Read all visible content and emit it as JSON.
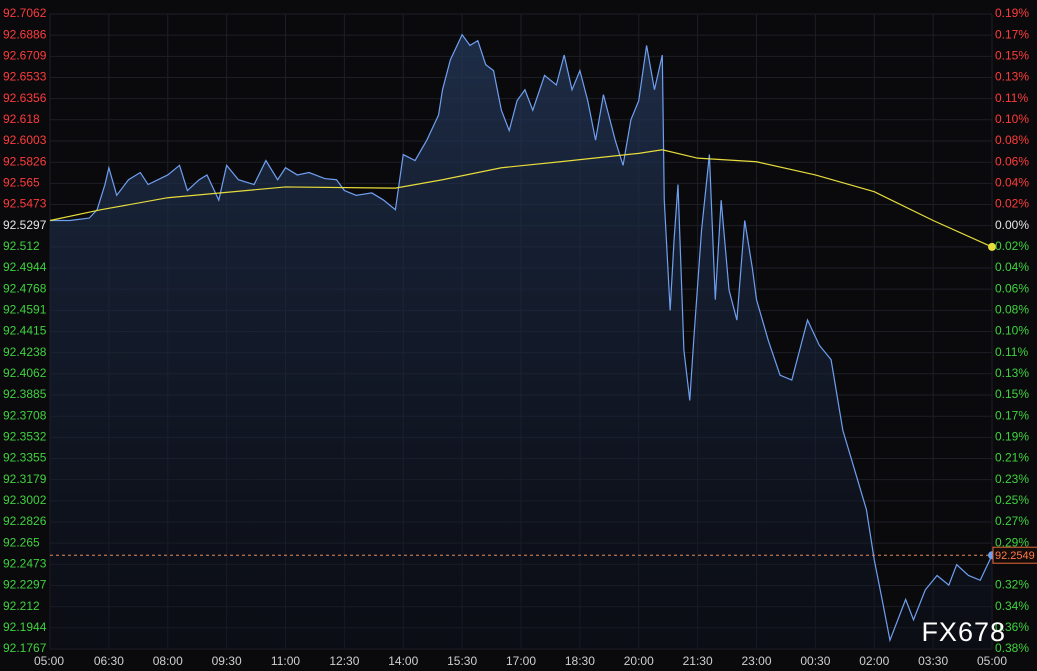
{
  "chart_data": {
    "type": "line",
    "watermark": "FX678",
    "grid": true,
    "up_color": "#ff3b3b",
    "down_color": "#3fd23f",
    "flat_color": "#e6e6e6",
    "xlim": [
      0,
      24
    ],
    "xticks": [
      {
        "value": 0,
        "label": "05:00"
      },
      {
        "value": 1.5,
        "label": "06:30"
      },
      {
        "value": 3,
        "label": "08:00"
      },
      {
        "value": 4.5,
        "label": "09:30"
      },
      {
        "value": 6,
        "label": "11:00"
      },
      {
        "value": 7.5,
        "label": "12:30"
      },
      {
        "value": 9,
        "label": "14:00"
      },
      {
        "value": 10.5,
        "label": "15:30"
      },
      {
        "value": 12,
        "label": "17:00"
      },
      {
        "value": 13.5,
        "label": "18:30"
      },
      {
        "value": 15,
        "label": "20:00"
      },
      {
        "value": 16.5,
        "label": "21:30"
      },
      {
        "value": 18,
        "label": "23:00"
      },
      {
        "value": 19.5,
        "label": "00:30"
      },
      {
        "value": 21,
        "label": "02:00"
      },
      {
        "value": 22.5,
        "label": "03:30"
      },
      {
        "value": 24,
        "label": "05:00"
      }
    ],
    "ylim": [
      92.1767,
      92.7062
    ],
    "yticks": [
      92.7062,
      92.6886,
      92.6709,
      92.6533,
      92.6356,
      92.618,
      92.6003,
      92.5826,
      92.565,
      92.5473,
      92.5297,
      92.512,
      92.4944,
      92.4768,
      92.4591,
      92.4415,
      92.4238,
      92.4062,
      92.3885,
      92.3708,
      92.3532,
      92.3355,
      92.3179,
      92.3002,
      92.2826,
      92.265,
      92.2473,
      92.2297,
      92.212,
      92.1944,
      92.1767
    ],
    "y2lim": [
      -0.3815,
      0.1908
    ],
    "y2ticks": [
      {
        "value": 0.1908,
        "label": "0.19%"
      },
      {
        "value": 0.1717,
        "label": "0.17%"
      },
      {
        "value": 0.1526,
        "label": "0.15%"
      },
      {
        "value": 0.1335,
        "label": "0.13%"
      },
      {
        "value": 0.1144,
        "label": "0.11%"
      },
      {
        "value": 0.0954,
        "label": "0.10%"
      },
      {
        "value": 0.0763,
        "label": "0.08%"
      },
      {
        "value": 0.0572,
        "label": "0.06%"
      },
      {
        "value": 0.0381,
        "label": "0.04%"
      },
      {
        "value": 0.0191,
        "label": "0.02%"
      },
      {
        "value": 0,
        "label": "0.00%"
      },
      {
        "value": -0.0191,
        "label": "0.02%"
      },
      {
        "value": -0.0381,
        "label": "0.04%"
      },
      {
        "value": -0.0572,
        "label": "0.06%"
      },
      {
        "value": -0.0763,
        "label": "0.08%"
      },
      {
        "value": -0.0954,
        "label": "0.10%"
      },
      {
        "value": -0.1144,
        "label": "0.11%"
      },
      {
        "value": -0.1335,
        "label": "0.13%"
      },
      {
        "value": -0.1526,
        "label": "0.15%"
      },
      {
        "value": -0.1717,
        "label": "0.17%"
      },
      {
        "value": -0.1908,
        "label": "0.19%"
      },
      {
        "value": -0.2098,
        "label": "0.21%"
      },
      {
        "value": -0.2289,
        "label": "0.23%"
      },
      {
        "value": -0.248,
        "label": "0.25%"
      },
      {
        "value": -0.2671,
        "label": "0.27%"
      },
      {
        "value": -0.2861,
        "label": "0.29%"
      },
      {
        "value": -0.3243,
        "label": "0.32%"
      },
      {
        "value": -0.3433,
        "label": "0.34%"
      },
      {
        "value": -0.3624,
        "label": "0.36%"
      },
      {
        "value": -0.3815,
        "label": "0.38%"
      }
    ],
    "last_price": 92.2549,
    "series": [
      {
        "color": "#6f9ff0",
        "fill": true,
        "x": [
          0,
          0.5,
          1.0,
          1.2,
          1.4,
          1.5,
          1.7,
          2.0,
          2.3,
          2.5,
          3.0,
          3.3,
          3.5,
          3.8,
          4.0,
          4.3,
          4.5,
          4.8,
          5.2,
          5.5,
          5.8,
          6.0,
          6.3,
          6.6,
          7.0,
          7.3,
          7.5,
          7.8,
          8.2,
          8.5,
          8.8,
          9.0,
          9.3,
          9.6,
          9.9,
          10.0,
          10.2,
          10.5,
          10.7,
          10.9,
          11.1,
          11.3,
          11.5,
          11.7,
          11.9,
          12.1,
          12.3,
          12.6,
          12.9,
          13.1,
          13.3,
          13.5,
          13.7,
          13.9,
          14.1,
          14.4,
          14.6,
          14.8,
          15.0,
          15.2,
          15.4,
          15.6,
          15.65,
          15.8,
          15.9,
          16.0,
          16.15,
          16.3,
          16.4,
          16.6,
          16.8,
          16.95,
          17.1,
          17.3,
          17.5,
          17.7,
          17.9,
          18.0,
          18.3,
          18.6,
          18.9,
          19.1,
          19.3,
          19.6,
          19.9,
          20.2,
          20.5,
          20.8,
          21.0,
          21.2,
          21.4,
          21.6,
          21.8,
          22.0,
          22.3,
          22.6,
          22.9,
          23.1,
          23.4,
          23.7,
          24.0
        ],
        "values": [
          92.534,
          92.534,
          92.536,
          92.543,
          92.564,
          92.578,
          92.555,
          92.568,
          92.574,
          92.564,
          92.572,
          92.58,
          92.559,
          92.568,
          92.572,
          92.551,
          92.58,
          92.568,
          92.564,
          92.584,
          92.568,
          92.578,
          92.572,
          92.574,
          92.569,
          92.568,
          92.559,
          92.555,
          92.557,
          92.551,
          92.543,
          92.589,
          92.584,
          92.601,
          92.622,
          92.643,
          92.668,
          92.689,
          92.68,
          92.684,
          92.664,
          92.659,
          92.626,
          92.609,
          92.634,
          92.643,
          92.626,
          92.655,
          92.647,
          92.672,
          92.643,
          92.659,
          92.634,
          92.601,
          92.639,
          92.601,
          92.58,
          92.618,
          92.634,
          92.68,
          92.643,
          92.672,
          92.551,
          92.459,
          92.518,
          92.564,
          92.426,
          92.384,
          92.434,
          92.526,
          92.589,
          92.468,
          92.551,
          92.476,
          92.451,
          92.534,
          92.493,
          92.468,
          92.434,
          92.405,
          92.401,
          92.426,
          92.451,
          92.43,
          92.418,
          92.359,
          92.326,
          92.293,
          92.251,
          92.218,
          92.184,
          92.201,
          92.218,
          92.201,
          92.226,
          92.238,
          92.23,
          92.247,
          92.238,
          92.234,
          92.2549
        ]
      },
      {
        "color": "#e6dc3c",
        "fill": false,
        "x": [
          0,
          1.3,
          3,
          6,
          8.8,
          10,
          11.5,
          13,
          15,
          15.6,
          16.5,
          18,
          19.5,
          21,
          22.5,
          24
        ],
        "values": [
          92.534,
          92.543,
          92.553,
          92.562,
          92.561,
          92.568,
          92.578,
          92.583,
          92.59,
          92.593,
          92.586,
          92.583,
          92.572,
          92.558,
          92.534,
          92.512
        ]
      }
    ]
  }
}
